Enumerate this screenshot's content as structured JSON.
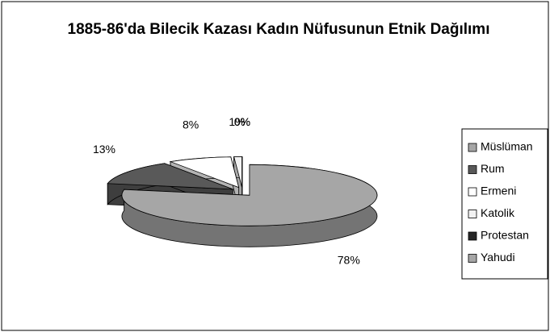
{
  "chart_data": {
    "type": "pie3d",
    "title": "1885-86'da Bilecik Kazası Kadın Nüfusunun Etnik Dağılımı",
    "categories": [
      "Müslüman",
      "Rum",
      "Ermeni",
      "Katolik",
      "Protestan",
      "Yahudi"
    ],
    "values": [
      78,
      13,
      8,
      1,
      0,
      0
    ],
    "value_labels": [
      "78%",
      "13%",
      "8%",
      "1%",
      "0%",
      "0%"
    ],
    "colors": [
      "#a6a6a6",
      "#595959",
      "#ffffff",
      "#f2f2f2",
      "#262626",
      "#a6a6a6"
    ],
    "legend": "right"
  }
}
